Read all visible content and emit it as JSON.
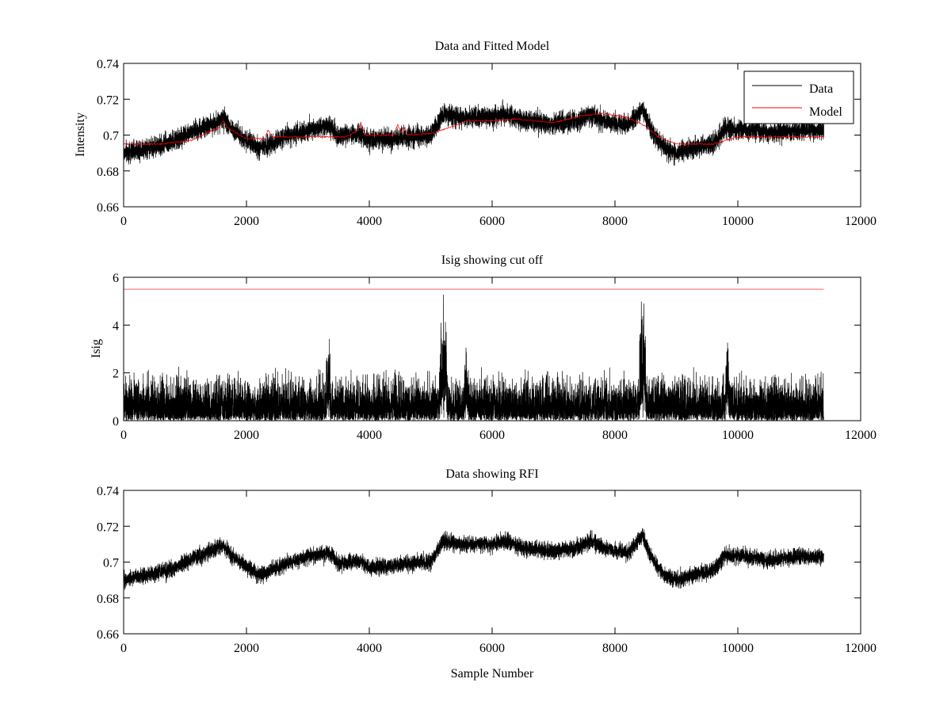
{
  "figure": {
    "background": "#ffffff"
  },
  "chart_data": [
    {
      "type": "line",
      "title": "Data and Fitted Model",
      "xlabel": "",
      "ylabel": "Intensity",
      "xlim": [
        0,
        12000
      ],
      "ylim": [
        0.66,
        0.74
      ],
      "xticks": [
        0,
        2000,
        4000,
        6000,
        8000,
        10000,
        12000
      ],
      "xtick_labels": [
        "0",
        "2000",
        "4000",
        "6000",
        "8000",
        "10000",
        "12000"
      ],
      "yticks": [
        0.66,
        0.68,
        0.7,
        0.72,
        0.74
      ],
      "ytick_labels": [
        "0.66",
        "0.68",
        "0.7",
        "0.72",
        "0.74"
      ],
      "grid": false,
      "legend": {
        "position": "top-right",
        "entries": [
          "Data",
          "Model"
        ]
      },
      "series": [
        {
          "name": "Data",
          "color": "#000000",
          "kind": "noisy",
          "x_start": 0,
          "x_end": 11400,
          "samples": 11400,
          "noise_amplitude": 0.005,
          "trend": [
            [
              0,
              0.69
            ],
            [
              400,
              0.693
            ],
            [
              800,
              0.696
            ],
            [
              1100,
              0.702
            ],
            [
              1450,
              0.706
            ],
            [
              1620,
              0.709
            ],
            [
              1750,
              0.704
            ],
            [
              2000,
              0.697
            ],
            [
              2200,
              0.692
            ],
            [
              2450,
              0.696
            ],
            [
              2700,
              0.7
            ],
            [
              3000,
              0.703
            ],
            [
              3350,
              0.705
            ],
            [
              3500,
              0.699
            ],
            [
              3850,
              0.701
            ],
            [
              4000,
              0.697
            ],
            [
              4400,
              0.698
            ],
            [
              4600,
              0.699
            ],
            [
              5000,
              0.7
            ],
            [
              5200,
              0.712
            ],
            [
              5400,
              0.71
            ],
            [
              5600,
              0.71
            ],
            [
              6000,
              0.71
            ],
            [
              6200,
              0.712
            ],
            [
              6500,
              0.708
            ],
            [
              7000,
              0.706
            ],
            [
              7400,
              0.708
            ],
            [
              7600,
              0.712
            ],
            [
              7800,
              0.708
            ],
            [
              8200,
              0.705
            ],
            [
              8450,
              0.715
            ],
            [
              8600,
              0.702
            ],
            [
              8800,
              0.693
            ],
            [
              9000,
              0.69
            ],
            [
              9300,
              0.693
            ],
            [
              9600,
              0.695
            ],
            [
              9800,
              0.704
            ],
            [
              10200,
              0.703
            ],
            [
              10500,
              0.701
            ],
            [
              11000,
              0.703
            ],
            [
              11400,
              0.703
            ]
          ]
        },
        {
          "name": "Model",
          "color": "#ff0000",
          "kind": "smooth",
          "x_start": 0,
          "x_end": 11400,
          "points": [
            [
              0,
              0.695
            ],
            [
              600,
              0.695
            ],
            [
              1100,
              0.697
            ],
            [
              1400,
              0.702
            ],
            [
              1550,
              0.704
            ],
            [
              1620,
              0.708
            ],
            [
              1700,
              0.704
            ],
            [
              2000,
              0.698
            ],
            [
              2300,
              0.698
            ],
            [
              2350,
              0.703
            ],
            [
              2420,
              0.699
            ],
            [
              3000,
              0.699
            ],
            [
              3600,
              0.699
            ],
            [
              3800,
              0.702
            ],
            [
              3860,
              0.707
            ],
            [
              3930,
              0.7
            ],
            [
              4400,
              0.7
            ],
            [
              4460,
              0.706
            ],
            [
              4520,
              0.701
            ],
            [
              4560,
              0.705
            ],
            [
              4620,
              0.7
            ],
            [
              5000,
              0.701
            ],
            [
              5300,
              0.704
            ],
            [
              5600,
              0.708
            ],
            [
              6000,
              0.708
            ],
            [
              6400,
              0.709
            ],
            [
              7000,
              0.707
            ],
            [
              7500,
              0.711
            ],
            [
              7800,
              0.712
            ],
            [
              8200,
              0.71
            ],
            [
              8500,
              0.705
            ],
            [
              8700,
              0.699
            ],
            [
              9000,
              0.695
            ],
            [
              9600,
              0.695
            ],
            [
              10000,
              0.699
            ],
            [
              10500,
              0.699
            ],
            [
              11000,
              0.699
            ],
            [
              11400,
              0.699
            ]
          ]
        }
      ]
    },
    {
      "type": "line",
      "title": "Isig showing cut off",
      "xlabel": "",
      "ylabel": "Isig",
      "xlim": [
        0,
        12000
      ],
      "ylim": [
        0,
        6
      ],
      "xticks": [
        0,
        2000,
        4000,
        6000,
        8000,
        10000,
        12000
      ],
      "xtick_labels": [
        "0",
        "2000",
        "4000",
        "6000",
        "8000",
        "10000",
        "12000"
      ],
      "yticks": [
        0,
        2,
        4,
        6
      ],
      "ytick_labels": [
        "0",
        "2",
        "4",
        "6"
      ],
      "grid": false,
      "series": [
        {
          "color": "#000000",
          "kind": "abs-noise",
          "x_start": 0,
          "x_end": 11400,
          "samples": 11400,
          "bursts": [
            [
              5150,
              5260,
              3.8
            ],
            [
              5550,
              5620,
              2.6
            ],
            [
              8400,
              8500,
              4.0
            ],
            [
              3300,
              3360,
              3.0
            ],
            [
              9800,
              9850,
              3.3
            ]
          ]
        },
        {
          "color": "#ff0000",
          "kind": "constant",
          "x_start": 0,
          "x_end": 11400,
          "value": 5.5
        }
      ]
    },
    {
      "type": "line",
      "title": "Data showing RFI",
      "xlabel": "Sample Number",
      "ylabel": "",
      "xlim": [
        0,
        12000
      ],
      "ylim": [
        0.66,
        0.74
      ],
      "xticks": [
        0,
        2000,
        4000,
        6000,
        8000,
        10000,
        12000
      ],
      "xtick_labels": [
        "0",
        "2000",
        "4000",
        "6000",
        "8000",
        "10000",
        "12000"
      ],
      "yticks": [
        0.66,
        0.68,
        0.7,
        0.72,
        0.74
      ],
      "ytick_labels": [
        "0.66",
        "0.68",
        "0.7",
        "0.72",
        "0.74"
      ],
      "grid": false,
      "series": [
        {
          "color": "#000000",
          "kind": "noisy",
          "x_start": 0,
          "x_end": 11400,
          "samples": 11400,
          "noise_amplitude": 0.004,
          "trend": [
            [
              0,
              0.69
            ],
            [
              400,
              0.693
            ],
            [
              800,
              0.696
            ],
            [
              1100,
              0.702
            ],
            [
              1450,
              0.706
            ],
            [
              1620,
              0.709
            ],
            [
              1750,
              0.704
            ],
            [
              2000,
              0.697
            ],
            [
              2200,
              0.693
            ],
            [
              2450,
              0.696
            ],
            [
              2700,
              0.7
            ],
            [
              3000,
              0.703
            ],
            [
              3350,
              0.705
            ],
            [
              3500,
              0.699
            ],
            [
              3850,
              0.701
            ],
            [
              4000,
              0.697
            ],
            [
              4400,
              0.698
            ],
            [
              4600,
              0.699
            ],
            [
              5000,
              0.7
            ],
            [
              5200,
              0.712
            ],
            [
              5400,
              0.71
            ],
            [
              5600,
              0.71
            ],
            [
              6000,
              0.71
            ],
            [
              6200,
              0.712
            ],
            [
              6500,
              0.708
            ],
            [
              7000,
              0.706
            ],
            [
              7400,
              0.708
            ],
            [
              7600,
              0.712
            ],
            [
              7800,
              0.708
            ],
            [
              8200,
              0.705
            ],
            [
              8450,
              0.715
            ],
            [
              8600,
              0.702
            ],
            [
              8800,
              0.693
            ],
            [
              9000,
              0.69
            ],
            [
              9300,
              0.693
            ],
            [
              9600,
              0.695
            ],
            [
              9800,
              0.704
            ],
            [
              10200,
              0.703
            ],
            [
              10500,
              0.701
            ],
            [
              11000,
              0.703
            ],
            [
              11400,
              0.703
            ]
          ]
        }
      ]
    }
  ]
}
